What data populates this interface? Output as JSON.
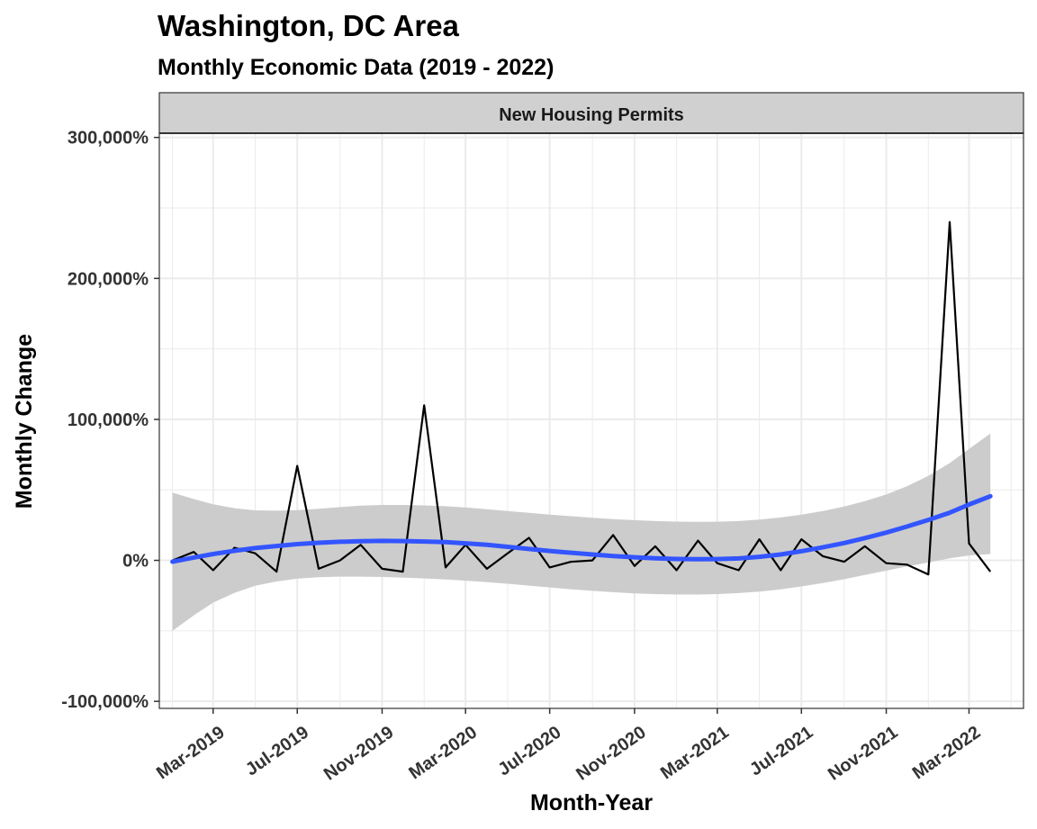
{
  "chart_data": {
    "type": "line",
    "title": "Washington, DC Area",
    "subtitle": "Monthly Economic Data (2019 - 2022)",
    "facet_label": "New Housing Permits",
    "xlabel": "Month-Year",
    "ylabel": "Monthly Change",
    "y_ticks": [
      -100000,
      0,
      100000,
      200000,
      300000
    ],
    "y_tick_labels": [
      "-100,000%",
      "0%",
      "100,000%",
      "200,000%",
      "300,000%"
    ],
    "ylim": [
      -105000,
      303000
    ],
    "x_ticks": [
      "2019-03",
      "2019-07",
      "2019-11",
      "2020-03",
      "2020-07",
      "2020-11",
      "2021-03",
      "2021-07",
      "2021-11",
      "2022-03"
    ],
    "x_tick_labels": [
      "Mar-2019",
      "Jul-2019",
      "Nov-2019",
      "Mar-2020",
      "Jul-2020",
      "Nov-2020",
      "Mar-2021",
      "Jul-2021",
      "Nov-2021",
      "Mar-2022"
    ],
    "xlim": [
      "2018-12-13",
      "2022-05-19"
    ],
    "grid": true,
    "colors": {
      "series": "#000000",
      "smooth": "#3355FF",
      "band": "#CCCCCC",
      "strip": "#D0D0D0"
    },
    "series": [
      {
        "x": [
          "2019-01",
          "2019-02",
          "2019-03",
          "2019-04",
          "2019-05",
          "2019-06",
          "2019-07",
          "2019-08",
          "2019-09",
          "2019-10",
          "2019-11",
          "2019-12",
          "2020-01",
          "2020-02",
          "2020-03",
          "2020-04",
          "2020-05",
          "2020-06",
          "2020-07",
          "2020-08",
          "2020-09",
          "2020-10",
          "2020-11",
          "2020-12",
          "2021-01",
          "2021-02",
          "2021-03",
          "2021-04",
          "2021-05",
          "2021-06",
          "2021-07",
          "2021-08",
          "2021-09",
          "2021-10",
          "2021-11",
          "2021-12",
          "2022-01",
          "2022-02",
          "2022-03",
          "2022-04"
        ],
        "values": [
          0,
          6000,
          -7000,
          9000,
          5000,
          -8000,
          67000,
          -6000,
          0,
          11000,
          -6000,
          -8000,
          110000,
          -5000,
          11000,
          -6000,
          5000,
          16000,
          -5000,
          -1000,
          0,
          18000,
          -4000,
          10000,
          -7000,
          14000,
          -2000,
          -7000,
          15000,
          -7000,
          15000,
          3000,
          -1000,
          10000,
          -2000,
          -3000,
          -10000,
          240000,
          12000,
          -8000
        ]
      },
      {
        "method": "loess",
        "x": [
          "2019-01",
          "2019-02",
          "2019-03",
          "2019-04",
          "2019-05",
          "2019-06",
          "2019-07",
          "2019-08",
          "2019-09",
          "2019-10",
          "2019-11",
          "2019-12",
          "2020-01",
          "2020-02",
          "2020-03",
          "2020-04",
          "2020-05",
          "2020-06",
          "2020-07",
          "2020-08",
          "2020-09",
          "2020-10",
          "2020-11",
          "2020-12",
          "2021-01",
          "2021-02",
          "2021-03",
          "2021-04",
          "2021-05",
          "2021-06",
          "2021-07",
          "2021-08",
          "2021-09",
          "2021-10",
          "2021-11",
          "2021-12",
          "2022-01",
          "2022-02",
          "2022-03",
          "2022-04"
        ],
        "values": [
          -1000,
          2000,
          4500,
          6800,
          8700,
          10200,
          11500,
          12500,
          13200,
          13600,
          13800,
          13700,
          13400,
          12900,
          12100,
          11000,
          9600,
          8100,
          6700,
          5400,
          4200,
          3100,
          2200,
          1500,
          1000,
          800,
          900,
          1400,
          2500,
          4200,
          6500,
          9200,
          12300,
          15800,
          19700,
          24000,
          28700,
          33800,
          39600,
          45500
        ],
        "band_upper": [
          48000,
          43500,
          39800,
          37000,
          35500,
          35200,
          35600,
          36600,
          37800,
          38800,
          39300,
          39300,
          39000,
          38400,
          37500,
          36300,
          35000,
          33700,
          32400,
          31300,
          30200,
          29300,
          28500,
          27900,
          27500,
          27300,
          27400,
          27900,
          28900,
          30400,
          32400,
          35000,
          38200,
          42000,
          46700,
          52500,
          60000,
          69000,
          79000,
          90000
        ],
        "band_lower": [
          -50000,
          -39000,
          -30000,
          -23000,
          -18000,
          -15000,
          -13000,
          -12000,
          -11500,
          -11500,
          -11800,
          -12200,
          -12800,
          -13500,
          -14400,
          -15400,
          -16600,
          -17900,
          -19200,
          -20500,
          -21600,
          -22600,
          -23400,
          -23900,
          -24200,
          -24200,
          -23900,
          -23200,
          -22100,
          -20500,
          -18500,
          -16100,
          -13400,
          -10400,
          -7300,
          -4300,
          -1500,
          1500,
          3500,
          4500
        ]
      }
    ]
  }
}
